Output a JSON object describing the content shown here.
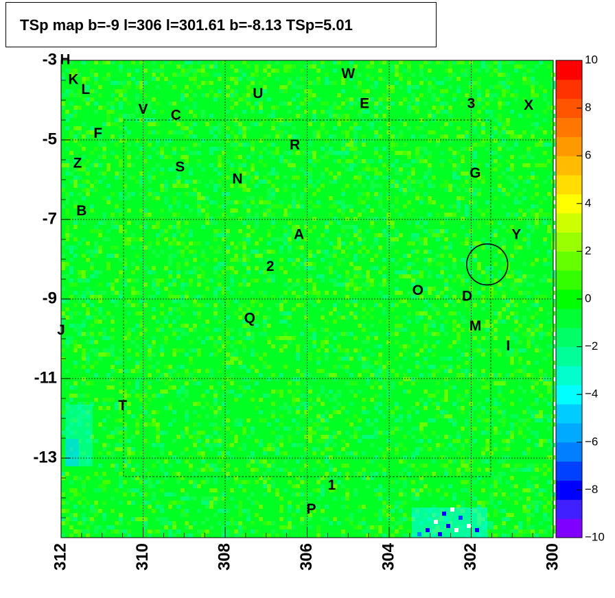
{
  "chart_data": {
    "type": "heatmap",
    "title": "TSp map b=-9 l=306 l=301.61 b=-8.13 TSp=5.01",
    "xlabel": "",
    "ylabel": "",
    "x_axis": {
      "range": [
        312,
        300
      ],
      "reversed": true,
      "ticks": [
        "312",
        "310",
        "308",
        "306",
        "304",
        "302",
        "300"
      ]
    },
    "y_axis": {
      "range": [
        -3,
        -15
      ],
      "ticks": [
        "-3",
        "-5",
        "-7",
        "-9",
        "-11",
        "-13"
      ]
    },
    "grid": true,
    "colorbar": {
      "range": [
        -10,
        10
      ],
      "ticks": [
        "10",
        "8",
        "6",
        "4",
        "2",
        "0",
        "−2",
        "−4",
        "−6",
        "−8",
        "−10"
      ],
      "colors": [
        "#7f00ff",
        "#4020ff",
        "#0000ff",
        "#0040ff",
        "#0080ff",
        "#00aaff",
        "#00ccff",
        "#00ffff",
        "#00ffcc",
        "#00ff99",
        "#00ff66",
        "#00ff33",
        "#00ff00",
        "#33ff00",
        "#66ff00",
        "#99ff00",
        "#ccff00",
        "#ffff00",
        "#ffdd00",
        "#ffbb00",
        "#ff9900",
        "#ff7700",
        "#ff5500",
        "#ff3300",
        "#ff0000"
      ]
    },
    "dominant_value": 0,
    "sources": [
      {
        "label": "H",
        "x": 311.9,
        "y": -3.0
      },
      {
        "label": "K",
        "x": 311.7,
        "y": -3.5
      },
      {
        "label": "L",
        "x": 311.4,
        "y": -3.75
      },
      {
        "label": "W",
        "x": 305.0,
        "y": -3.35
      },
      {
        "label": "U",
        "x": 307.2,
        "y": -3.85
      },
      {
        "label": "V",
        "x": 310.0,
        "y": -4.25
      },
      {
        "label": "C",
        "x": 309.2,
        "y": -4.4
      },
      {
        "label": "E",
        "x": 304.6,
        "y": -4.1
      },
      {
        "label": "3",
        "x": 302.0,
        "y": -4.1
      },
      {
        "label": "X",
        "x": 300.6,
        "y": -4.15
      },
      {
        "label": "F",
        "x": 311.1,
        "y": -4.85
      },
      {
        "label": "R",
        "x": 306.3,
        "y": -5.15
      },
      {
        "label": "Z",
        "x": 311.6,
        "y": -5.6
      },
      {
        "label": "S",
        "x": 309.1,
        "y": -5.7
      },
      {
        "label": "N",
        "x": 307.7,
        "y": -6.0
      },
      {
        "label": "G",
        "x": 301.9,
        "y": -5.85
      },
      {
        "label": "B",
        "x": 311.5,
        "y": -6.8
      },
      {
        "label": "A",
        "x": 306.2,
        "y": -7.4
      },
      {
        "label": "Y",
        "x": 300.9,
        "y": -7.4
      },
      {
        "label": "2",
        "x": 306.9,
        "y": -8.2
      },
      {
        "label": "O",
        "x": 303.3,
        "y": -8.8
      },
      {
        "label": "D",
        "x": 302.1,
        "y": -8.95
      },
      {
        "label": "Q",
        "x": 307.4,
        "y": -9.5
      },
      {
        "label": "M",
        "x": 301.9,
        "y": -9.7
      },
      {
        "label": "J",
        "x": 312.0,
        "y": -9.8
      },
      {
        "label": "I",
        "x": 301.1,
        "y": -10.2
      },
      {
        "label": "T",
        "x": 310.5,
        "y": -11.7
      },
      {
        "label": "1",
        "x": 305.4,
        "y": -13.7
      },
      {
        "label": "P",
        "x": 305.9,
        "y": -14.3
      }
    ],
    "circle": {
      "x": 301.61,
      "y": -8.13,
      "radius_deg": 0.5
    }
  }
}
